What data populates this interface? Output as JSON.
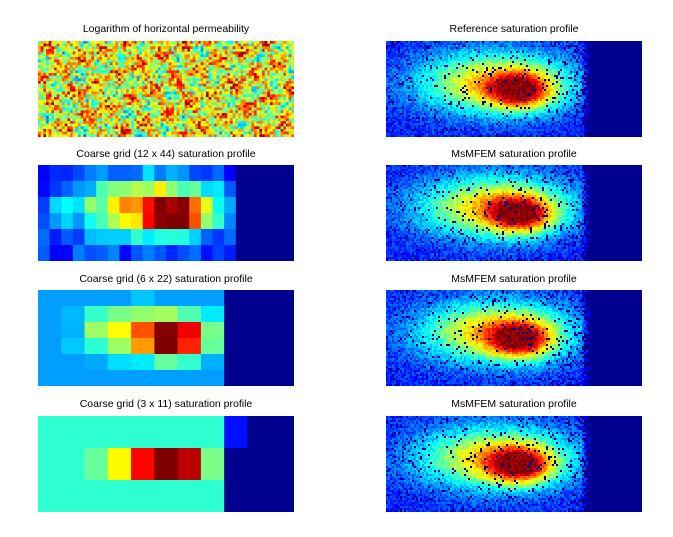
{
  "titles": {
    "permeability": "Logarithm of horizontal permeability",
    "reference": "Reference saturation profile",
    "coarse_12x44": "Coarse grid (12 x 44) saturation profile",
    "coarse_6x22": "Coarse grid (6 x 22) saturation profile",
    "coarse_3x11": "Coarse grid (3 x 11) saturation profile",
    "msmfem_1": "MsMFEM saturation profile",
    "msmfem_2": "MsMFEM saturation profile",
    "msmfem_3": "MsMFEM saturation profile"
  },
  "colormap": [
    "#00008f",
    "#0000ff",
    "#0080ff",
    "#00ffff",
    "#80ff80",
    "#ffff00",
    "#ff8000",
    "#ff0000",
    "#800000"
  ]
}
